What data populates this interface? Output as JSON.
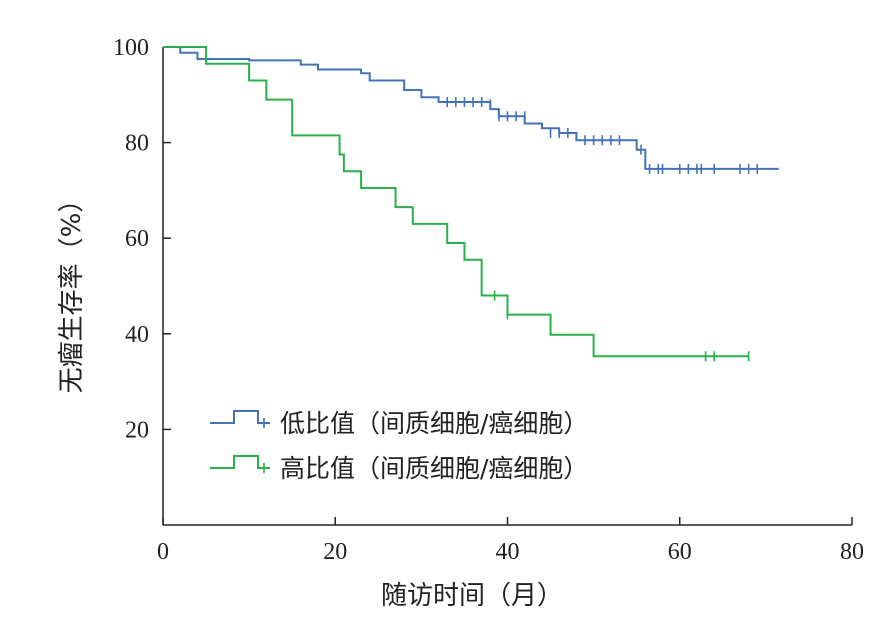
{
  "chart_data": {
    "type": "line",
    "xlabel": "随访时间（月）",
    "ylabel": "无瘤生存率（%）",
    "xlim": [
      0,
      80
    ],
    "ylim": [
      0,
      100
    ],
    "x_ticks": [
      "0",
      "20",
      "40",
      "60",
      "80"
    ],
    "y_ticks": [
      "20",
      "40",
      "60",
      "80",
      "100"
    ],
    "y_tick_values": [
      20,
      40,
      60,
      80,
      100
    ],
    "x_tick_values": [
      0,
      20,
      40,
      60,
      80
    ],
    "grid": false,
    "legend_position": "lower-left",
    "series": [
      {
        "name": "低比值（间质细胞/癌细胞）",
        "color": "#4472b8",
        "steps": [
          [
            0,
            100
          ],
          [
            2,
            98.8
          ],
          [
            4,
            97.5
          ],
          [
            10,
            97.2
          ],
          [
            16,
            96.3
          ],
          [
            18,
            95.3
          ],
          [
            23,
            94.5
          ],
          [
            24,
            93
          ],
          [
            28,
            91
          ],
          [
            30,
            89.5
          ],
          [
            32,
            88.5
          ],
          [
            38,
            87
          ],
          [
            39,
            85.5
          ],
          [
            42,
            84
          ],
          [
            44,
            83
          ],
          [
            46,
            82
          ],
          [
            48,
            80.5
          ],
          [
            55,
            78.5
          ],
          [
            56,
            74.5
          ],
          [
            71.5,
            74.5
          ]
        ],
        "censors": [
          [
            33,
            88.5
          ],
          [
            34,
            88.5
          ],
          [
            35,
            88.5
          ],
          [
            36,
            88.5
          ],
          [
            37,
            88.5
          ],
          [
            38,
            88
          ],
          [
            39,
            85.5
          ],
          [
            40,
            85.5
          ],
          [
            41,
            85.5
          ],
          [
            42,
            85.5
          ],
          [
            45,
            82
          ],
          [
            46,
            82
          ],
          [
            47,
            82
          ],
          [
            49,
            80.5
          ],
          [
            50,
            80.5
          ],
          [
            51,
            80.5
          ],
          [
            52,
            80.5
          ],
          [
            53,
            80.5
          ],
          [
            55.5,
            78.5
          ],
          [
            56.5,
            74.5
          ],
          [
            57.5,
            74.5
          ],
          [
            58,
            74.5
          ],
          [
            60,
            74.5
          ],
          [
            61,
            74.5
          ],
          [
            62,
            74.5
          ],
          [
            62.5,
            74.5
          ],
          [
            64,
            74.5
          ],
          [
            67,
            74.5
          ],
          [
            68,
            74.5
          ],
          [
            69,
            74.5
          ]
        ]
      },
      {
        "name": "高比值（间质细胞/癌细胞）",
        "color": "#2ab04a",
        "steps": [
          [
            0,
            100
          ],
          [
            5,
            96.5
          ],
          [
            10,
            93
          ],
          [
            12,
            89
          ],
          [
            15,
            81.5
          ],
          [
            20,
            81.5
          ],
          [
            20.5,
            77.5
          ],
          [
            21,
            74
          ],
          [
            23,
            70.5
          ],
          [
            27,
            66.5
          ],
          [
            29,
            63
          ],
          [
            33,
            59
          ],
          [
            35,
            55.5
          ],
          [
            37,
            48
          ],
          [
            40,
            44
          ],
          [
            45,
            39.8
          ],
          [
            50,
            35.3
          ],
          [
            68,
            35.3
          ]
        ],
        "censors": [
          [
            38.5,
            48
          ],
          [
            40,
            44
          ],
          [
            63,
            35.3
          ],
          [
            64,
            35.3
          ],
          [
            68,
            35.3
          ]
        ]
      }
    ]
  }
}
